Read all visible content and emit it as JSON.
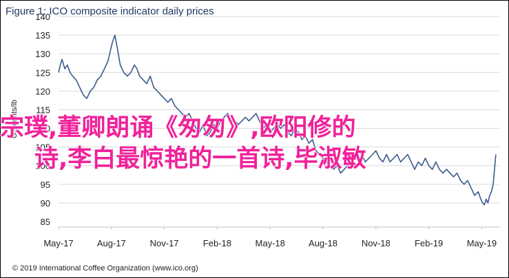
{
  "title": "Figure 1: ICO composite indicator daily prices",
  "copyright": "© 2019 International Coffee Organization (www.ico.org)",
  "overlay_text": {
    "line1": "宗璞,董卿朗诵《匆匆》,欧阳修的",
    "line2": "诗,李白最惊艳的一首诗,毕淑敏"
  },
  "colors": {
    "line": "#3a5b8c",
    "title": "#1f3864",
    "overlay": "#f0229a",
    "grid": "#d9d9d9"
  },
  "chart_data": {
    "type": "line",
    "title": "Figure 1: ICO composite indicator daily prices",
    "xlabel": "",
    "ylabel": "US cents/lb",
    "ylim": [
      85,
      140
    ],
    "yticks": [
      85,
      90,
      95,
      100,
      105,
      110,
      115,
      120,
      125,
      130,
      135,
      140
    ],
    "xlim": [
      0,
      25
    ],
    "xticks": [
      {
        "label": "May-17",
        "x": 0
      },
      {
        "label": "Aug-17",
        "x": 3
      },
      {
        "label": "Nov-17",
        "x": 6
      },
      {
        "label": "Feb-18",
        "x": 9
      },
      {
        "label": "May-18",
        "x": 12
      },
      {
        "label": "Aug-18",
        "x": 15
      },
      {
        "label": "Nov-18",
        "x": 18
      },
      {
        "label": "Feb-19",
        "x": 21
      },
      {
        "label": "May-19",
        "x": 24
      }
    ],
    "grid": true,
    "series": [
      {
        "name": "",
        "x": [
          0,
          0.1,
          0.2,
          0.35,
          0.5,
          0.65,
          0.8,
          1.0,
          1.2,
          1.4,
          1.6,
          1.8,
          2.0,
          2.2,
          2.4,
          2.6,
          2.8,
          2.95,
          3.05,
          3.2,
          3.35,
          3.5,
          3.7,
          3.9,
          4.1,
          4.3,
          4.45,
          4.6,
          4.8,
          5.0,
          5.2,
          5.4,
          5.6,
          5.8,
          6.0,
          6.2,
          6.4,
          6.6,
          6.8,
          7.0,
          7.2,
          7.4,
          7.6,
          7.8,
          8.0,
          8.2,
          8.4,
          8.6,
          8.8,
          9.0,
          9.2,
          9.4,
          9.6,
          9.8,
          10.0,
          10.2,
          10.4,
          10.6,
          10.8,
          11.0,
          11.2,
          11.4,
          11.6,
          11.8,
          12.0,
          12.2,
          12.4,
          12.6,
          12.8,
          13.0,
          13.2,
          13.4,
          13.6,
          13.8,
          14.0,
          14.2,
          14.4,
          14.6,
          14.8,
          15.0,
          15.2,
          15.4,
          15.6,
          15.8,
          16.0,
          16.2,
          16.4,
          16.6,
          16.8,
          17.0,
          17.2,
          17.4,
          17.6,
          17.8,
          18.0,
          18.2,
          18.4,
          18.6,
          18.8,
          19.0,
          19.2,
          19.4,
          19.6,
          19.8,
          20.0,
          20.2,
          20.4,
          20.6,
          20.8,
          21.0,
          21.2,
          21.4,
          21.6,
          21.8,
          22.0,
          22.2,
          22.4,
          22.6,
          22.8,
          23.0,
          23.2,
          23.4,
          23.6,
          23.8,
          23.95,
          24.05,
          24.15,
          24.25,
          24.35,
          24.45,
          24.55,
          24.65,
          24.8
        ],
        "values": [
          125,
          127,
          128.5,
          126,
          127,
          125,
          124,
          123,
          121,
          119,
          118,
          120,
          121,
          123,
          124,
          126,
          128,
          131,
          133,
          135,
          131,
          127,
          125,
          124,
          125,
          127,
          126,
          124,
          123,
          122,
          124,
          121,
          120,
          119,
          118,
          117,
          118,
          116,
          115,
          114,
          113,
          114,
          112,
          110,
          109,
          111,
          108,
          109,
          111,
          110,
          112,
          113,
          114,
          112,
          112,
          111,
          112,
          113,
          112,
          113,
          114,
          112,
          110,
          111,
          109,
          110,
          111,
          110,
          111,
          109,
          108,
          110,
          109,
          107,
          108,
          106,
          107,
          104,
          103,
          102,
          101,
          100,
          99,
          100,
          98,
          99,
          100,
          101,
          102,
          104,
          103,
          101,
          102,
          103,
          104,
          102,
          101,
          103,
          101,
          102,
          103,
          101,
          102,
          103,
          101,
          99,
          101,
          100,
          102,
          100,
          99,
          101,
          99,
          98,
          99,
          98,
          97,
          98,
          96,
          95,
          96,
          94,
          92,
          93,
          91,
          90,
          89.5,
          91,
          90,
          92,
          93,
          95,
          103
        ]
      }
    ]
  }
}
